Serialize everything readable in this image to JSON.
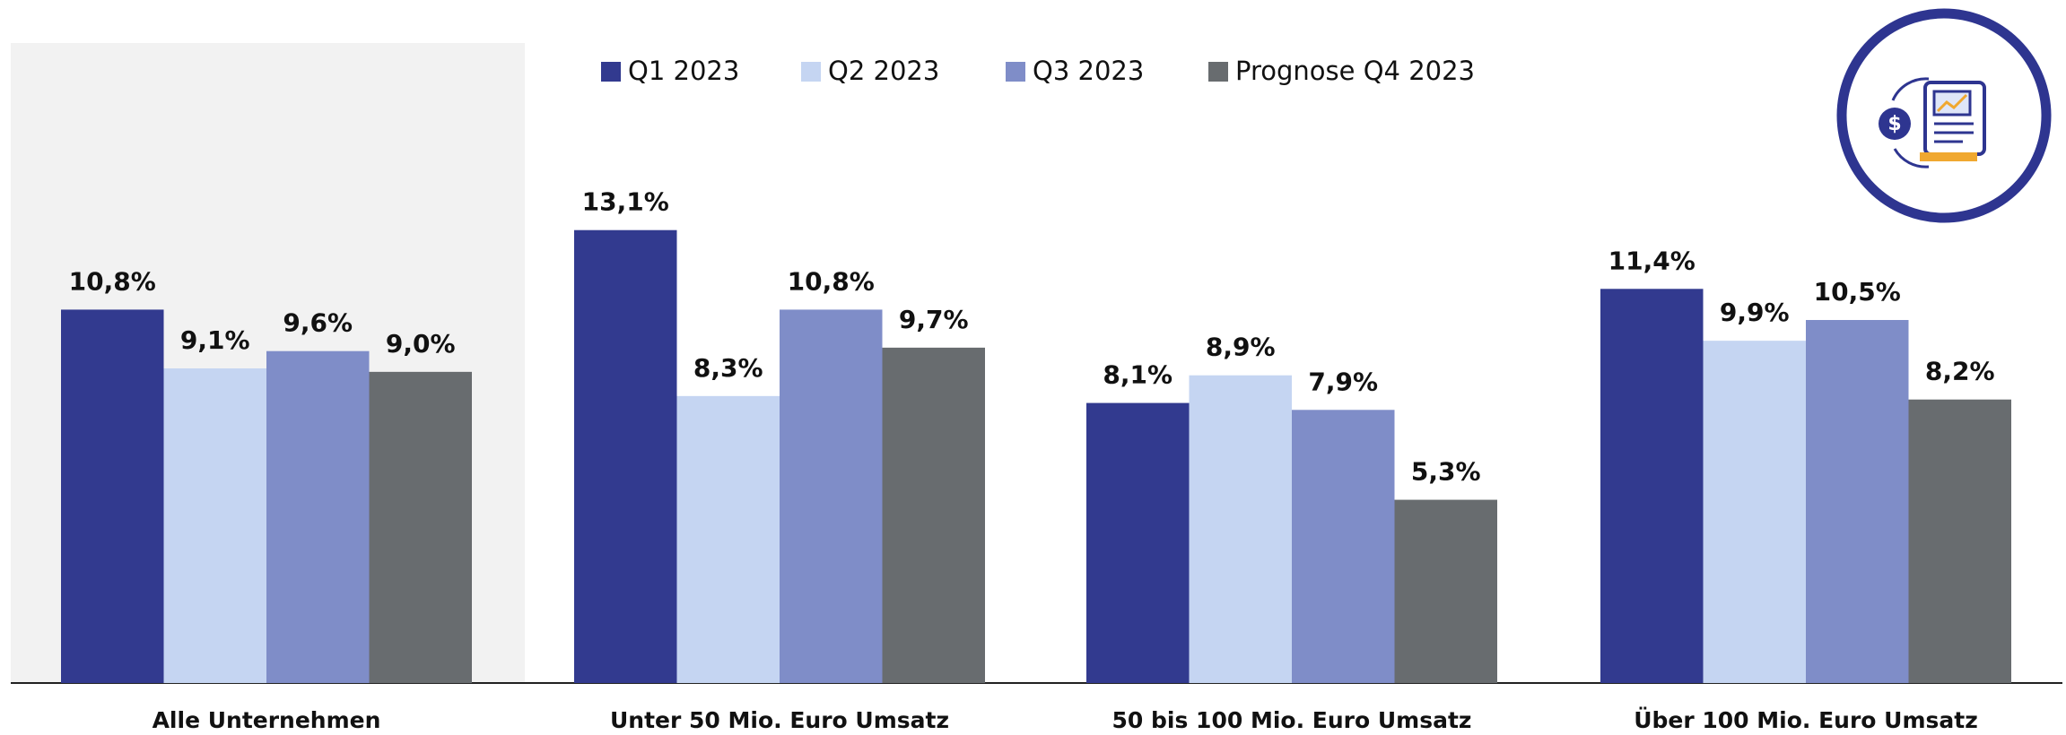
{
  "chart_data": {
    "type": "bar",
    "categories": [
      "Alle Unternehmen",
      "Unter 50 Mio. Euro Umsatz",
      "50 bis 100 Mio. Euro Umsatz",
      "Über 100 Mio. Euro Umsatz"
    ],
    "series": [
      {
        "name": "Q1 2023",
        "color": "#323a8f",
        "values": [
          10.8,
          13.1,
          8.1,
          11.4
        ],
        "value_labels": [
          "10,8%",
          "13,1%",
          "8,1%",
          "11,4%"
        ]
      },
      {
        "name": "Q2 2023",
        "color": "#c5d5f2",
        "values": [
          9.1,
          8.3,
          8.9,
          9.9
        ],
        "value_labels": [
          "9,1%",
          "8,3%",
          "8,9%",
          "9,9%"
        ]
      },
      {
        "name": "Q3 2023",
        "color": "#7f8dc8",
        "values": [
          9.6,
          10.8,
          7.9,
          10.5
        ],
        "value_labels": [
          "9,6%",
          "10,8%",
          "7,9%",
          "10,5%"
        ]
      },
      {
        "name": "Prognose Q4 2023",
        "color": "#686c6f",
        "values": [
          9.0,
          9.7,
          5.3,
          8.2
        ],
        "value_labels": [
          "9,0%",
          "9,7%",
          "5,3%",
          "8,2%"
        ]
      }
    ],
    "ylim": [
      0,
      14
    ],
    "grid": false,
    "legend": "top"
  }
}
